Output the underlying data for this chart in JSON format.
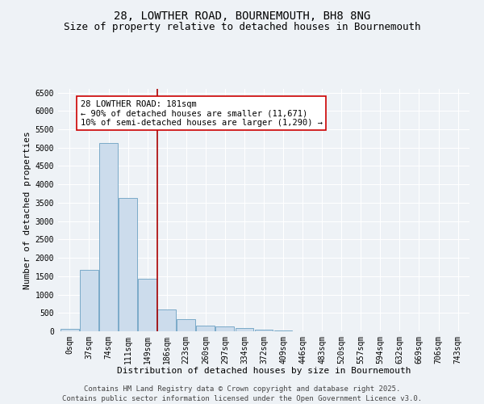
{
  "title_line1": "28, LOWTHER ROAD, BOURNEMOUTH, BH8 8NG",
  "title_line2": "Size of property relative to detached houses in Bournemouth",
  "xlabel": "Distribution of detached houses by size in Bournemouth",
  "ylabel": "Number of detached properties",
  "bar_color": "#ccdcec",
  "bar_edge_color": "#7aaac8",
  "categories": [
    "0sqm",
    "37sqm",
    "74sqm",
    "111sqm",
    "149sqm",
    "186sqm",
    "223sqm",
    "260sqm",
    "297sqm",
    "334sqm",
    "372sqm",
    "409sqm",
    "446sqm",
    "483sqm",
    "520sqm",
    "557sqm",
    "594sqm",
    "632sqm",
    "669sqm",
    "706sqm",
    "743sqm"
  ],
  "values": [
    70,
    1670,
    5120,
    3620,
    1430,
    600,
    330,
    155,
    130,
    90,
    55,
    25,
    10,
    5,
    3,
    2,
    1,
    0,
    0,
    0,
    0
  ],
  "ylim": [
    0,
    6600
  ],
  "yticks": [
    0,
    500,
    1000,
    1500,
    2000,
    2500,
    3000,
    3500,
    4000,
    4500,
    5000,
    5500,
    6000,
    6500
  ],
  "property_line_x": 5,
  "annotation_text": "28 LOWTHER ROAD: 181sqm\n← 90% of detached houses are smaller (11,671)\n10% of semi-detached houses are larger (1,290) →",
  "annotation_box_color": "#ffffff",
  "annotation_box_edge": "#cc0000",
  "vline_color": "#aa0000",
  "footer_line1": "Contains HM Land Registry data © Crown copyright and database right 2025.",
  "footer_line2": "Contains public sector information licensed under the Open Government Licence v3.0.",
  "bg_color": "#eef2f6",
  "grid_color": "#ffffff",
  "title_fontsize": 10,
  "subtitle_fontsize": 9,
  "axis_label_fontsize": 8,
  "tick_fontsize": 7,
  "annotation_fontsize": 7.5,
  "footer_fontsize": 6.5
}
